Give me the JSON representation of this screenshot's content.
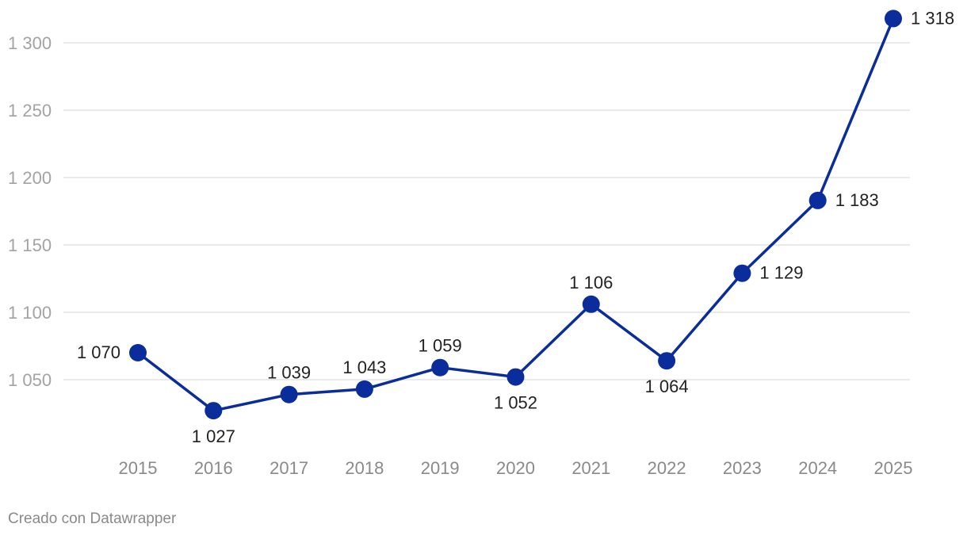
{
  "chart_data": {
    "type": "line",
    "x": [
      "2015",
      "2016",
      "2017",
      "2018",
      "2019",
      "2020",
      "2021",
      "2022",
      "2023",
      "2024",
      "2025"
    ],
    "series": [
      {
        "values": [
          1070,
          1027,
          1039,
          1043,
          1059,
          1052,
          1106,
          1064,
          1129,
          1183,
          1318
        ],
        "labels": [
          "1 070",
          "1 027",
          "1 039",
          "1 043",
          "1 059",
          "1 052",
          "1 106",
          "1 064",
          "1 129",
          "1 183",
          "1 318"
        ],
        "label_positions": [
          "left",
          "below",
          "above",
          "above",
          "above",
          "below",
          "above",
          "below",
          "right",
          "right",
          "right"
        ]
      }
    ],
    "yticks": [
      1050,
      1100,
      1150,
      1200,
      1250,
      1300
    ],
    "ytick_labels": [
      "1 050",
      "1 100",
      "1 150",
      "1 200",
      "1 250",
      "1 300"
    ],
    "ylim": [
      1000,
      1318
    ],
    "grid": true,
    "colors": {
      "line": "#0a2d9b",
      "grid": "#e3e3e3"
    }
  },
  "credit": "Creado con Datawrapper"
}
